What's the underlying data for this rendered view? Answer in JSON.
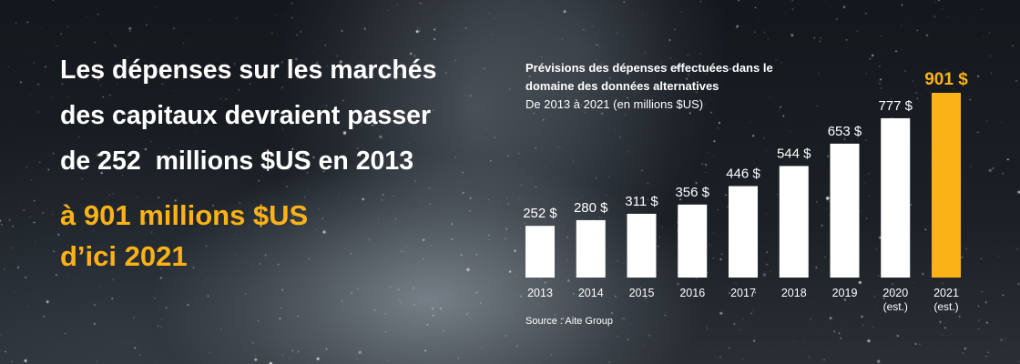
{
  "headline": {
    "line1": "Les dépenses sur les marchés",
    "line2": "des capitaux devraient passer",
    "line3": "de 252  millions $US en 2013"
  },
  "highlight": {
    "line1": "à 901 millions $US",
    "line2": "d’ici 2021"
  },
  "chart_data": {
    "type": "bar",
    "title": "Prévisions des dépenses effectuées dans le domaine des données alternatives",
    "subtitle": "De 2013 à 2021 (en millions $US)",
    "categories": [
      "2013",
      "2014",
      "2015",
      "2016",
      "2017",
      "2018",
      "2019",
      "2020",
      "2021"
    ],
    "category_notes": [
      "",
      "",
      "",
      "",
      "",
      "",
      "",
      "(est.)",
      "(est.)"
    ],
    "values": [
      252,
      280,
      311,
      356,
      446,
      544,
      653,
      777,
      901
    ],
    "data_labels": [
      "252 $",
      "280 $",
      "311 $",
      "356 $",
      "446 $",
      "544 $",
      "653 $",
      "777 $",
      "901 $"
    ],
    "unit": "millions $US",
    "highlight_index": 8,
    "bar_color": "#ffffff",
    "highlight_color": "#fbb217",
    "ylim": [
      0,
      901
    ],
    "grid": false,
    "legend": "none",
    "source": "Source : Aite Group"
  },
  "chart_title": {
    "line1": "Prévisions des dépenses effectuées dans le",
    "line2": "domaine des données alternatives",
    "line3": "De 2013 à 2021 (en millions $US)"
  },
  "colors": {
    "accent": "#fbb217",
    "text": "#ffffff",
    "background": "#14181d"
  }
}
